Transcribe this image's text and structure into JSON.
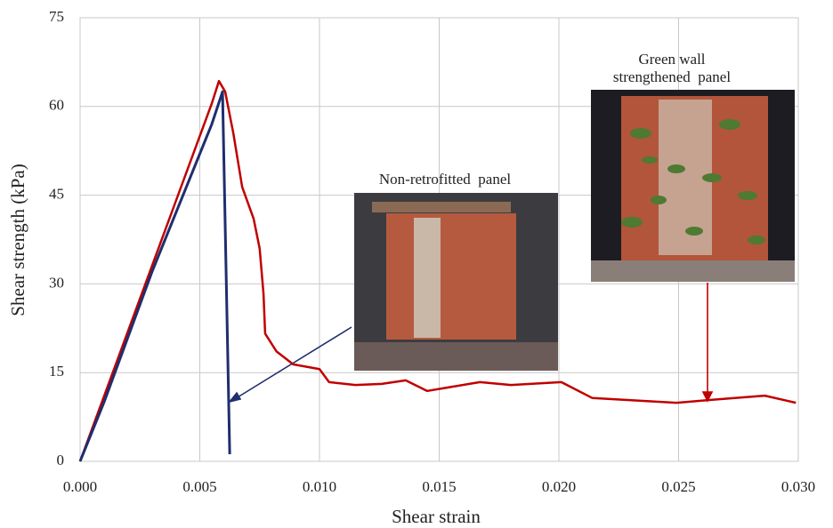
{
  "chart_data": {
    "type": "line",
    "x_label": "Shear strain",
    "y_label": "Shear strength (kPa)",
    "xlim": [
      0,
      0.03
    ],
    "ylim": [
      0,
      75
    ],
    "xticks": [
      {
        "value": 0,
        "label": "0.000"
      },
      {
        "value": 0.005,
        "label": "0.005"
      },
      {
        "value": 0.01,
        "label": "0.010"
      },
      {
        "value": 0.015,
        "label": "0.015"
      },
      {
        "value": 0.02,
        "label": "0.020"
      },
      {
        "value": 0.025,
        "label": "0.025"
      },
      {
        "value": 0.03,
        "label": "0.030"
      }
    ],
    "yticks": [
      0,
      15,
      30,
      45,
      60,
      75
    ],
    "grid": true,
    "series": [
      {
        "color": "#c00000",
        "x": [
          0,
          0.001,
          0.002,
          0.003,
          0.004,
          0.005,
          0.0055,
          0.0058,
          0.00606,
          0.0064,
          0.00677,
          0.00725,
          0.0075,
          0.00766,
          0.00773,
          0.0082,
          0.0089,
          0.01,
          0.0104,
          0.0115,
          0.0126,
          0.0136,
          0.0145,
          0.0167,
          0.018,
          0.0201,
          0.0214,
          0.0227,
          0.0249,
          0.0264,
          0.0286,
          0.0299
        ],
        "values": [
          0,
          11,
          22,
          33,
          44,
          55,
          60.5,
          64.3,
          62.5,
          55.5,
          46.4,
          41,
          36,
          28.4,
          21.6,
          18.6,
          16.4,
          15.6,
          13.4,
          12.9,
          13.1,
          13.7,
          11.9,
          13.4,
          12.9,
          13.4,
          10.7,
          10.4,
          9.9,
          10.4,
          11.1,
          9.9
        ]
      },
      {
        "color": "#1f2e6e",
        "x": [
          0,
          0.001,
          0.002,
          0.003,
          0.004,
          0.005,
          0.0055,
          0.00595,
          0.00625
        ],
        "values": [
          0,
          10,
          21,
          32,
          42,
          52,
          57,
          62.5,
          1.2
        ]
      }
    ],
    "annotations": [
      {
        "lines": [
          "Non-retrofitted  panel"
        ]
      },
      {
        "lines": [
          "Green wall",
          "strengthened  panel"
        ]
      }
    ]
  }
}
